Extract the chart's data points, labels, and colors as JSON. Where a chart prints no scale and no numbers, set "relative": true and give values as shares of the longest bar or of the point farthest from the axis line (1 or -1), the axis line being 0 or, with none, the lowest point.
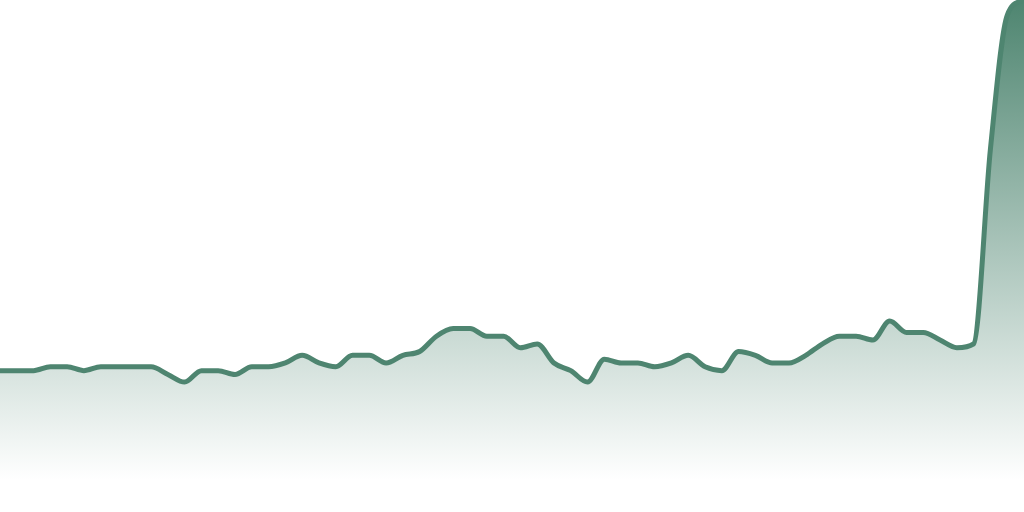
{
  "chart_data": {
    "type": "area",
    "relative": true,
    "categories": [
      null,
      null,
      null,
      null,
      null,
      null,
      null,
      null,
      null,
      null,
      null,
      null,
      null,
      null,
      null,
      null,
      null,
      null,
      null,
      null,
      null,
      null,
      null,
      null,
      null,
      null,
      null,
      null,
      null,
      null,
      null,
      null,
      null,
      null,
      null,
      null,
      null,
      null,
      null,
      null,
      null,
      null,
      null,
      null,
      null,
      null,
      null,
      null,
      null,
      null,
      null,
      null,
      null,
      null,
      null,
      null,
      null,
      null,
      null,
      null,
      null,
      null
    ],
    "series": [
      {
        "color": "#4e8570",
        "values": [
          0.03,
          0.03,
          0.03,
          0.04,
          0.04,
          0.03,
          0.04,
          0.04,
          0.04,
          0.04,
          0.02,
          0,
          0.03,
          0.03,
          0.02,
          0.04,
          0.04,
          0.05,
          0.07,
          0.05,
          0.04,
          0.07,
          0.07,
          0.05,
          0.07,
          0.08,
          0.12,
          0.14,
          0.14,
          0.12,
          0.12,
          0.09,
          0.1,
          0.05,
          0.03,
          0,
          0.06,
          0.05,
          0.05,
          0.04,
          0.05,
          0.07,
          0.04,
          0.03,
          0.08,
          0.07,
          0.05,
          0.05,
          0.07,
          0.1,
          0.12,
          0.12,
          0.11,
          0.16,
          0.13,
          0.13,
          0.11,
          0.09,
          0.1,
          0.61,
          0.96,
          1
        ]
      }
    ],
    "legend": false
  }
}
